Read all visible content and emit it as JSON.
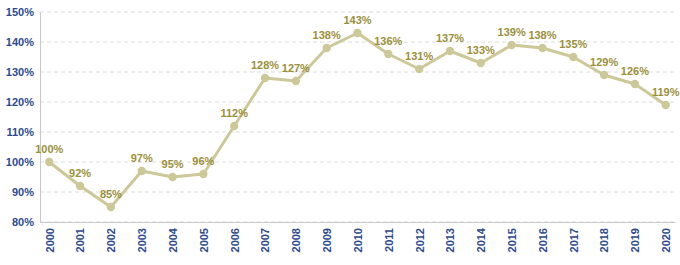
{
  "chart_data": {
    "type": "line",
    "categories": [
      "2000",
      "2001",
      "2002",
      "2003",
      "2004",
      "2005",
      "2006",
      "2007",
      "2008",
      "2009",
      "2010",
      "2011",
      "2012",
      "2013",
      "2014",
      "2015",
      "2016",
      "2017",
      "2018",
      "2019",
      "2020"
    ],
    "values": [
      100,
      92,
      85,
      97,
      95,
      96,
      112,
      128,
      127,
      138,
      143,
      136,
      131,
      137,
      133,
      139,
      138,
      135,
      129,
      126,
      119
    ],
    "value_labels": [
      "100%",
      "92%",
      "85%",
      "97%",
      "95%",
      "96%",
      "112%",
      "128%",
      "127%",
      "138%",
      "143%",
      "136%",
      "131%",
      "137%",
      "133%",
      "139%",
      "138%",
      "135%",
      "129%",
      "126%",
      "119%"
    ],
    "color": "#cdc89a",
    "marker": "circle",
    "data_labels": true,
    "ylim": [
      80,
      150
    ],
    "yticks": [
      {
        "value": 80,
        "label": "80%"
      },
      {
        "value": 90,
        "label": "90%"
      },
      {
        "value": 100,
        "label": "100%"
      },
      {
        "value": 110,
        "label": "110%"
      },
      {
        "value": 120,
        "label": "120%"
      },
      {
        "value": 130,
        "label": "130%"
      },
      {
        "value": 140,
        "label": "140%"
      },
      {
        "value": 150,
        "label": "150%"
      }
    ],
    "grid": true
  }
}
